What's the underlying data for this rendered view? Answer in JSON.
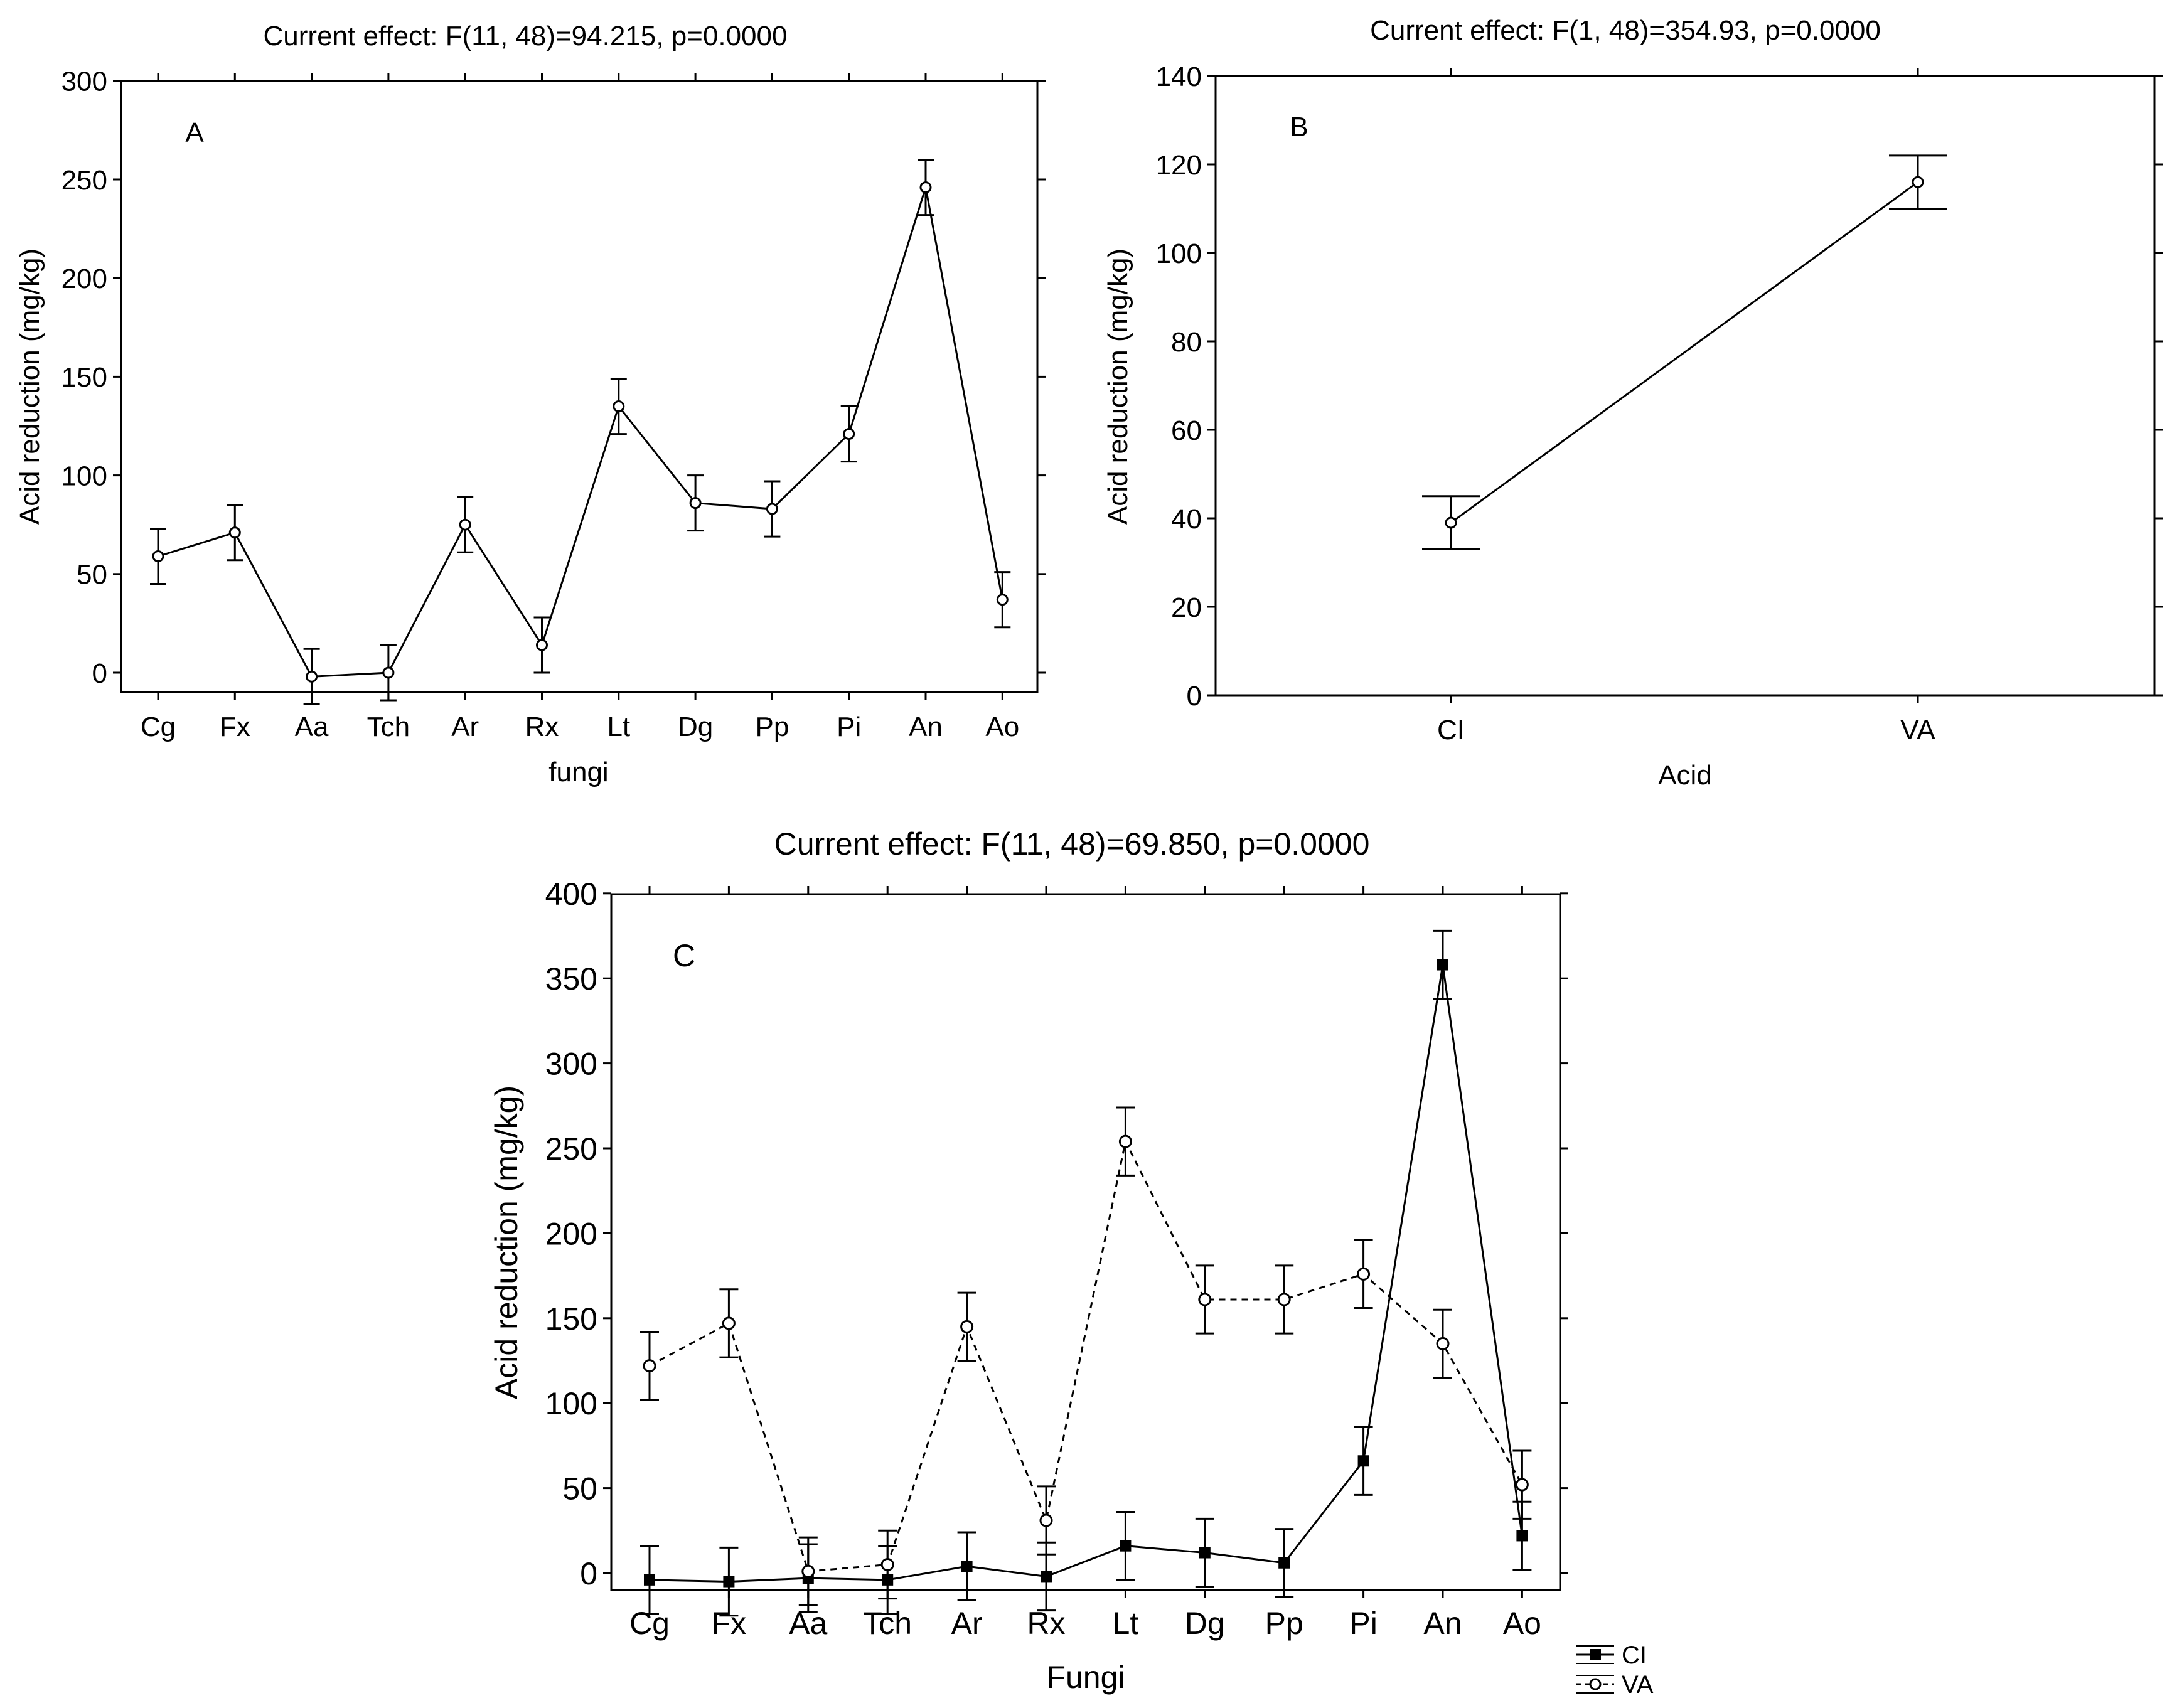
{
  "chart_data": [
    {
      "id": "A",
      "type": "line",
      "panel_label": "A",
      "title": "Current effect: F(11, 48)=94.215, p=0.0000",
      "xlabel": "fungi",
      "ylabel": "Acid reduction (mg/kg)",
      "ylim": [
        -10,
        300
      ],
      "yticks": [
        0,
        50,
        100,
        150,
        200,
        250,
        300
      ],
      "categories": [
        "Cg",
        "Fx",
        "Aa",
        "Tch",
        "Ar",
        "Rx",
        "Lt",
        "Dg",
        "Pp",
        "Pi",
        "An",
        "Ao"
      ],
      "series": [
        {
          "name": "mean",
          "marker": "open-circle",
          "line": "solid",
          "values": [
            59,
            71,
            -2,
            0,
            75,
            14,
            135,
            86,
            83,
            121,
            246,
            37
          ],
          "err": [
            14,
            14,
            14,
            14,
            14,
            14,
            14,
            14,
            14,
            14,
            14,
            14
          ]
        }
      ]
    },
    {
      "id": "B",
      "type": "line",
      "panel_label": "B",
      "title": "Current effect: F(1, 48)=354.93, p=0.0000",
      "xlabel": "Acid",
      "ylabel": "Acid reduction (mg/kg)",
      "ylim": [
        0,
        140
      ],
      "yticks": [
        0,
        20,
        40,
        60,
        80,
        100,
        120,
        140
      ],
      "categories": [
        "CI",
        "VA"
      ],
      "series": [
        {
          "name": "mean",
          "marker": "open-circle",
          "line": "solid",
          "values": [
            39,
            116
          ],
          "err": [
            6,
            6
          ]
        }
      ]
    },
    {
      "id": "C",
      "type": "line",
      "panel_label": "C",
      "title": "Current effect: F(11, 48)=69.850, p=0.0000",
      "xlabel": "Fungi",
      "ylabel": "Acid reduction (mg/kg)",
      "ylim": [
        -10,
        400
      ],
      "yticks": [
        0,
        50,
        100,
        150,
        200,
        250,
        300,
        350,
        400
      ],
      "categories": [
        "Cg",
        "Fx",
        "Aa",
        "Tch",
        "Ar",
        "Rx",
        "Lt",
        "Dg",
        "Pp",
        "Pi",
        "An",
        "Ao"
      ],
      "legend_position": "bottom-right",
      "series": [
        {
          "name": "CI",
          "marker": "filled-square",
          "line": "solid",
          "values": [
            -4,
            -5,
            -3,
            -4,
            4,
            -2,
            16,
            12,
            6,
            66,
            358,
            22
          ],
          "err": [
            20,
            20,
            20,
            20,
            20,
            20,
            20,
            20,
            20,
            20,
            20,
            20
          ]
        },
        {
          "name": "VA",
          "marker": "open-circle",
          "line": "dashed",
          "values": [
            122,
            147,
            1,
            5,
            145,
            31,
            254,
            161,
            161,
            176,
            135,
            52
          ],
          "err": [
            20,
            20,
            20,
            20,
            20,
            20,
            20,
            20,
            20,
            20,
            20,
            20
          ]
        }
      ]
    }
  ]
}
